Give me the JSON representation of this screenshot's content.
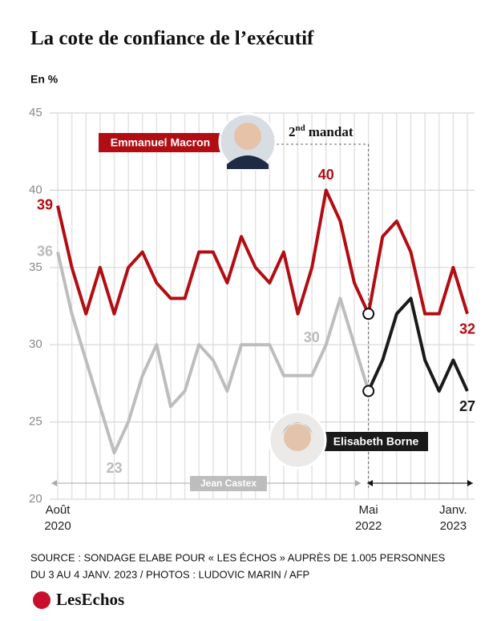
{
  "chart_data": {
    "type": "line",
    "title": "La cote de confiance de l’exécutif",
    "unit_label": "En %",
    "categories": [
      [
        "Août",
        "2020"
      ],
      null,
      null,
      null,
      null,
      null,
      null,
      null,
      null,
      null,
      null,
      null,
      null,
      null,
      null,
      null,
      null,
      null,
      null,
      null,
      null,
      null,
      [
        "Mai",
        "2022"
      ],
      null,
      null,
      null,
      null,
      null,
      [
        "Janv.",
        "2023"
      ],
      null
    ],
    "series": [
      {
        "name": "Emmanuel Macron",
        "color": "#b20d12",
        "values": [
          39,
          35,
          32,
          35,
          32,
          35,
          36,
          34,
          33,
          33,
          36,
          36,
          34,
          37,
          35,
          34,
          36,
          32,
          35,
          40,
          38,
          34,
          32,
          37,
          38,
          36,
          32,
          32,
          35,
          32
        ],
        "value_labels": [
          "39",
          null,
          null,
          null,
          null,
          null,
          null,
          null,
          null,
          null,
          null,
          null,
          null,
          null,
          null,
          null,
          null,
          null,
          null,
          "40",
          null,
          null,
          null,
          null,
          null,
          null,
          null,
          null,
          null,
          "32"
        ]
      },
      {
        "name": "Jean Castex",
        "color": "#bdbdbd",
        "values": [
          36,
          32,
          29,
          26,
          23,
          25,
          28,
          30,
          26,
          27,
          30,
          29,
          27,
          30,
          30,
          30,
          28,
          28,
          28,
          30,
          33,
          30,
          27,
          null,
          null,
          null,
          null,
          null,
          null,
          null
        ],
        "value_labels": [
          "36",
          null,
          null,
          null,
          "23",
          null,
          null,
          null,
          null,
          null,
          null,
          null,
          null,
          null,
          null,
          null,
          null,
          null,
          null,
          "30",
          null,
          null,
          null,
          null,
          null,
          null,
          null,
          null,
          null,
          null
        ]
      },
      {
        "name": "Elisabeth Borne",
        "color": "#1a1a1a",
        "values": [
          null,
          null,
          null,
          null,
          null,
          null,
          null,
          null,
          null,
          null,
          null,
          null,
          null,
          null,
          null,
          null,
          null,
          null,
          null,
          null,
          null,
          null,
          27,
          29,
          32,
          33,
          29,
          27,
          29,
          27
        ],
        "value_labels": [
          null,
          null,
          null,
          null,
          null,
          null,
          null,
          null,
          null,
          null,
          null,
          null,
          null,
          null,
          null,
          null,
          null,
          null,
          null,
          null,
          null,
          null,
          null,
          null,
          null,
          null,
          null,
          null,
          null,
          "27"
        ]
      }
    ],
    "ylim": [
      20,
      45
    ],
    "yticks": [
      20,
      25,
      30,
      35,
      40,
      45
    ],
    "grid": true,
    "annotation": {
      "number": "2",
      "suffix": "nd",
      "text": "mandat"
    },
    "source": [
      "SOURCE : SONDAGE ELABE POUR « LES ÉCHOS » AUPRÈS DE 1.005 PERSONNES",
      "DU 3 AU 4 JANV. 2023 / PHOTOS : LUDOVIC MARIN / AFP"
    ],
    "brand": "LesEchos"
  }
}
